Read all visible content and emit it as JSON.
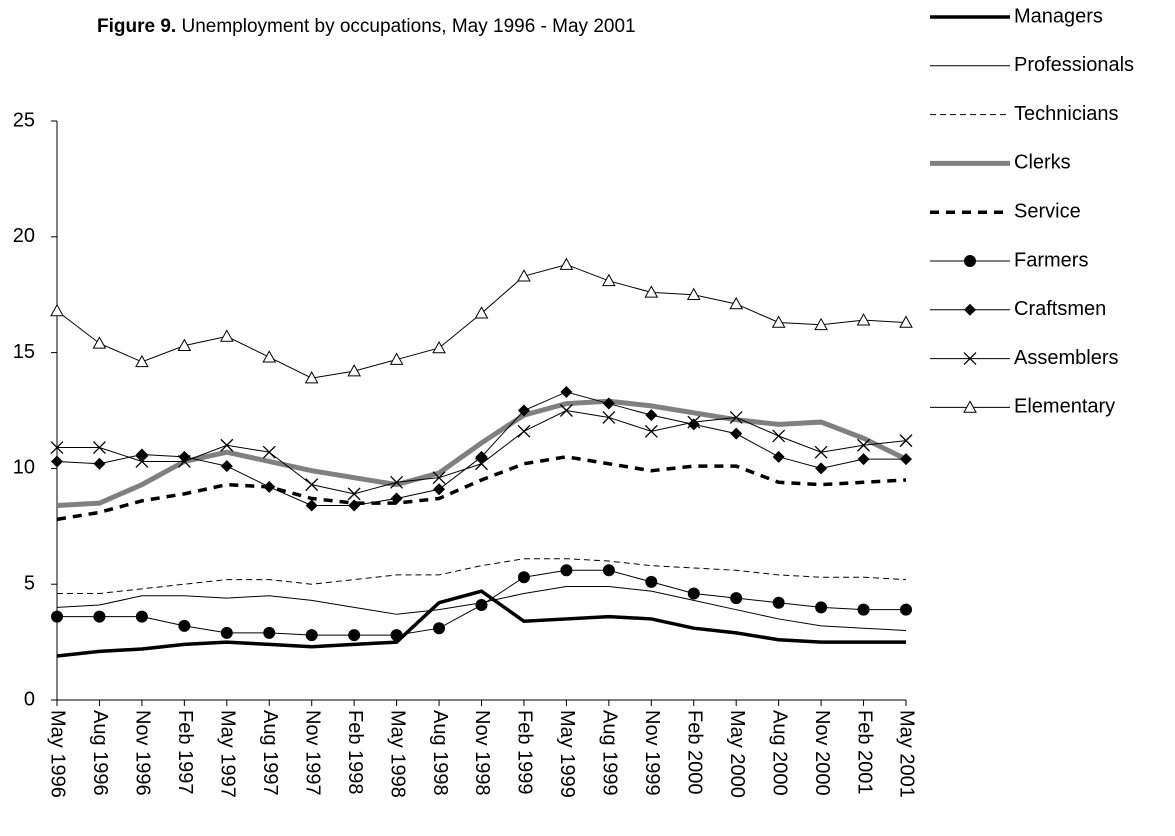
{
  "chart_data": {
    "type": "line",
    "figure_label": "Figure 9.",
    "title": "Unemployment by occupations, May 1996 - May 2001",
    "categories": [
      "May 1996",
      "Aug 1996",
      "Nov 1996",
      "Feb 1997",
      "May 1997",
      "Aug 1997",
      "Nov 1997",
      "Feb 1998",
      "May 1998",
      "Aug 1998",
      "Nov 1998",
      "Feb 1999",
      "May 1999",
      "Aug 1999",
      "Nov 1999",
      "Feb 2000",
      "May 2000",
      "Aug 2000",
      "Nov 2000",
      "Feb 2001",
      "May 2001"
    ],
    "ylim": [
      0,
      25
    ],
    "yticks": [
      0,
      5,
      10,
      15,
      20,
      25
    ],
    "grid": false,
    "legend": "right",
    "series": [
      {
        "name": "Managers",
        "color": "#000000",
        "width": 3.5,
        "dash": "none",
        "marker": "none",
        "values": [
          1.9,
          2.1,
          2.2,
          2.4,
          2.5,
          2.4,
          2.3,
          2.4,
          2.5,
          4.2,
          4.7,
          3.4,
          3.5,
          3.6,
          3.5,
          3.1,
          2.9,
          2.6,
          2.5,
          2.5,
          2.5
        ]
      },
      {
        "name": "Professionals",
        "color": "#000000",
        "width": 1,
        "dash": "none",
        "marker": "none",
        "values": [
          4.0,
          4.1,
          4.5,
          4.5,
          4.4,
          4.5,
          4.3,
          4.0,
          3.7,
          3.9,
          4.2,
          4.6,
          4.9,
          4.9,
          4.7,
          4.3,
          3.9,
          3.5,
          3.2,
          3.1,
          3.0
        ]
      },
      {
        "name": "Technicians",
        "color": "#000000",
        "width": 1,
        "dash": "6,4",
        "marker": "none",
        "values": [
          4.6,
          4.6,
          4.8,
          5.0,
          5.2,
          5.2,
          5.0,
          5.2,
          5.4,
          5.4,
          5.8,
          6.1,
          6.1,
          6.0,
          5.8,
          5.7,
          5.6,
          5.4,
          5.3,
          5.3,
          5.2
        ]
      },
      {
        "name": "Clerks",
        "color": "#808080",
        "width": 5,
        "dash": "none",
        "marker": "none",
        "values": [
          8.4,
          8.5,
          9.3,
          10.3,
          10.7,
          10.3,
          9.9,
          9.6,
          9.3,
          9.8,
          11.1,
          12.3,
          12.8,
          12.9,
          12.7,
          12.4,
          12.1,
          11.9,
          12.0,
          11.3,
          10.4
        ]
      },
      {
        "name": "Service",
        "color": "#000000",
        "width": 3.5,
        "dash": "9,7",
        "marker": "none",
        "values": [
          7.8,
          8.1,
          8.6,
          8.9,
          9.3,
          9.2,
          8.7,
          8.5,
          8.5,
          8.7,
          9.5,
          10.2,
          10.5,
          10.2,
          9.9,
          10.1,
          10.1,
          9.4,
          9.3,
          9.4,
          9.5
        ]
      },
      {
        "name": "Farmers",
        "color": "#000000",
        "width": 1,
        "dash": "none",
        "marker": "circle",
        "values": [
          3.6,
          3.6,
          3.6,
          3.2,
          2.9,
          2.9,
          2.8,
          2.8,
          2.8,
          3.1,
          4.1,
          5.3,
          5.6,
          5.6,
          5.1,
          4.6,
          4.4,
          4.2,
          4.0,
          3.9,
          3.9
        ]
      },
      {
        "name": "Craftsmen",
        "color": "#000000",
        "width": 1,
        "dash": "none",
        "marker": "diamond",
        "values": [
          10.3,
          10.2,
          10.6,
          10.5,
          10.1,
          9.2,
          8.4,
          8.4,
          8.7,
          9.1,
          10.5,
          12.5,
          13.3,
          12.8,
          12.3,
          11.9,
          11.5,
          10.5,
          10.0,
          10.4,
          10.4
        ]
      },
      {
        "name": "Assemblers",
        "color": "#000000",
        "width": 1,
        "dash": "none",
        "marker": "cross",
        "values": [
          10.9,
          10.9,
          10.3,
          10.3,
          11.0,
          10.7,
          9.3,
          8.9,
          9.4,
          9.6,
          10.2,
          11.6,
          12.5,
          12.2,
          11.6,
          12.0,
          12.2,
          11.4,
          10.7,
          11.0,
          11.2
        ]
      },
      {
        "name": "Elementary",
        "color": "#000000",
        "width": 1,
        "dash": "none",
        "marker": "triangle",
        "values": [
          16.8,
          15.4,
          14.6,
          15.3,
          15.7,
          14.8,
          13.9,
          14.2,
          14.7,
          15.2,
          16.7,
          18.3,
          18.8,
          18.1,
          17.6,
          17.5,
          17.1,
          16.3,
          16.2,
          16.4,
          16.3
        ]
      }
    ]
  }
}
